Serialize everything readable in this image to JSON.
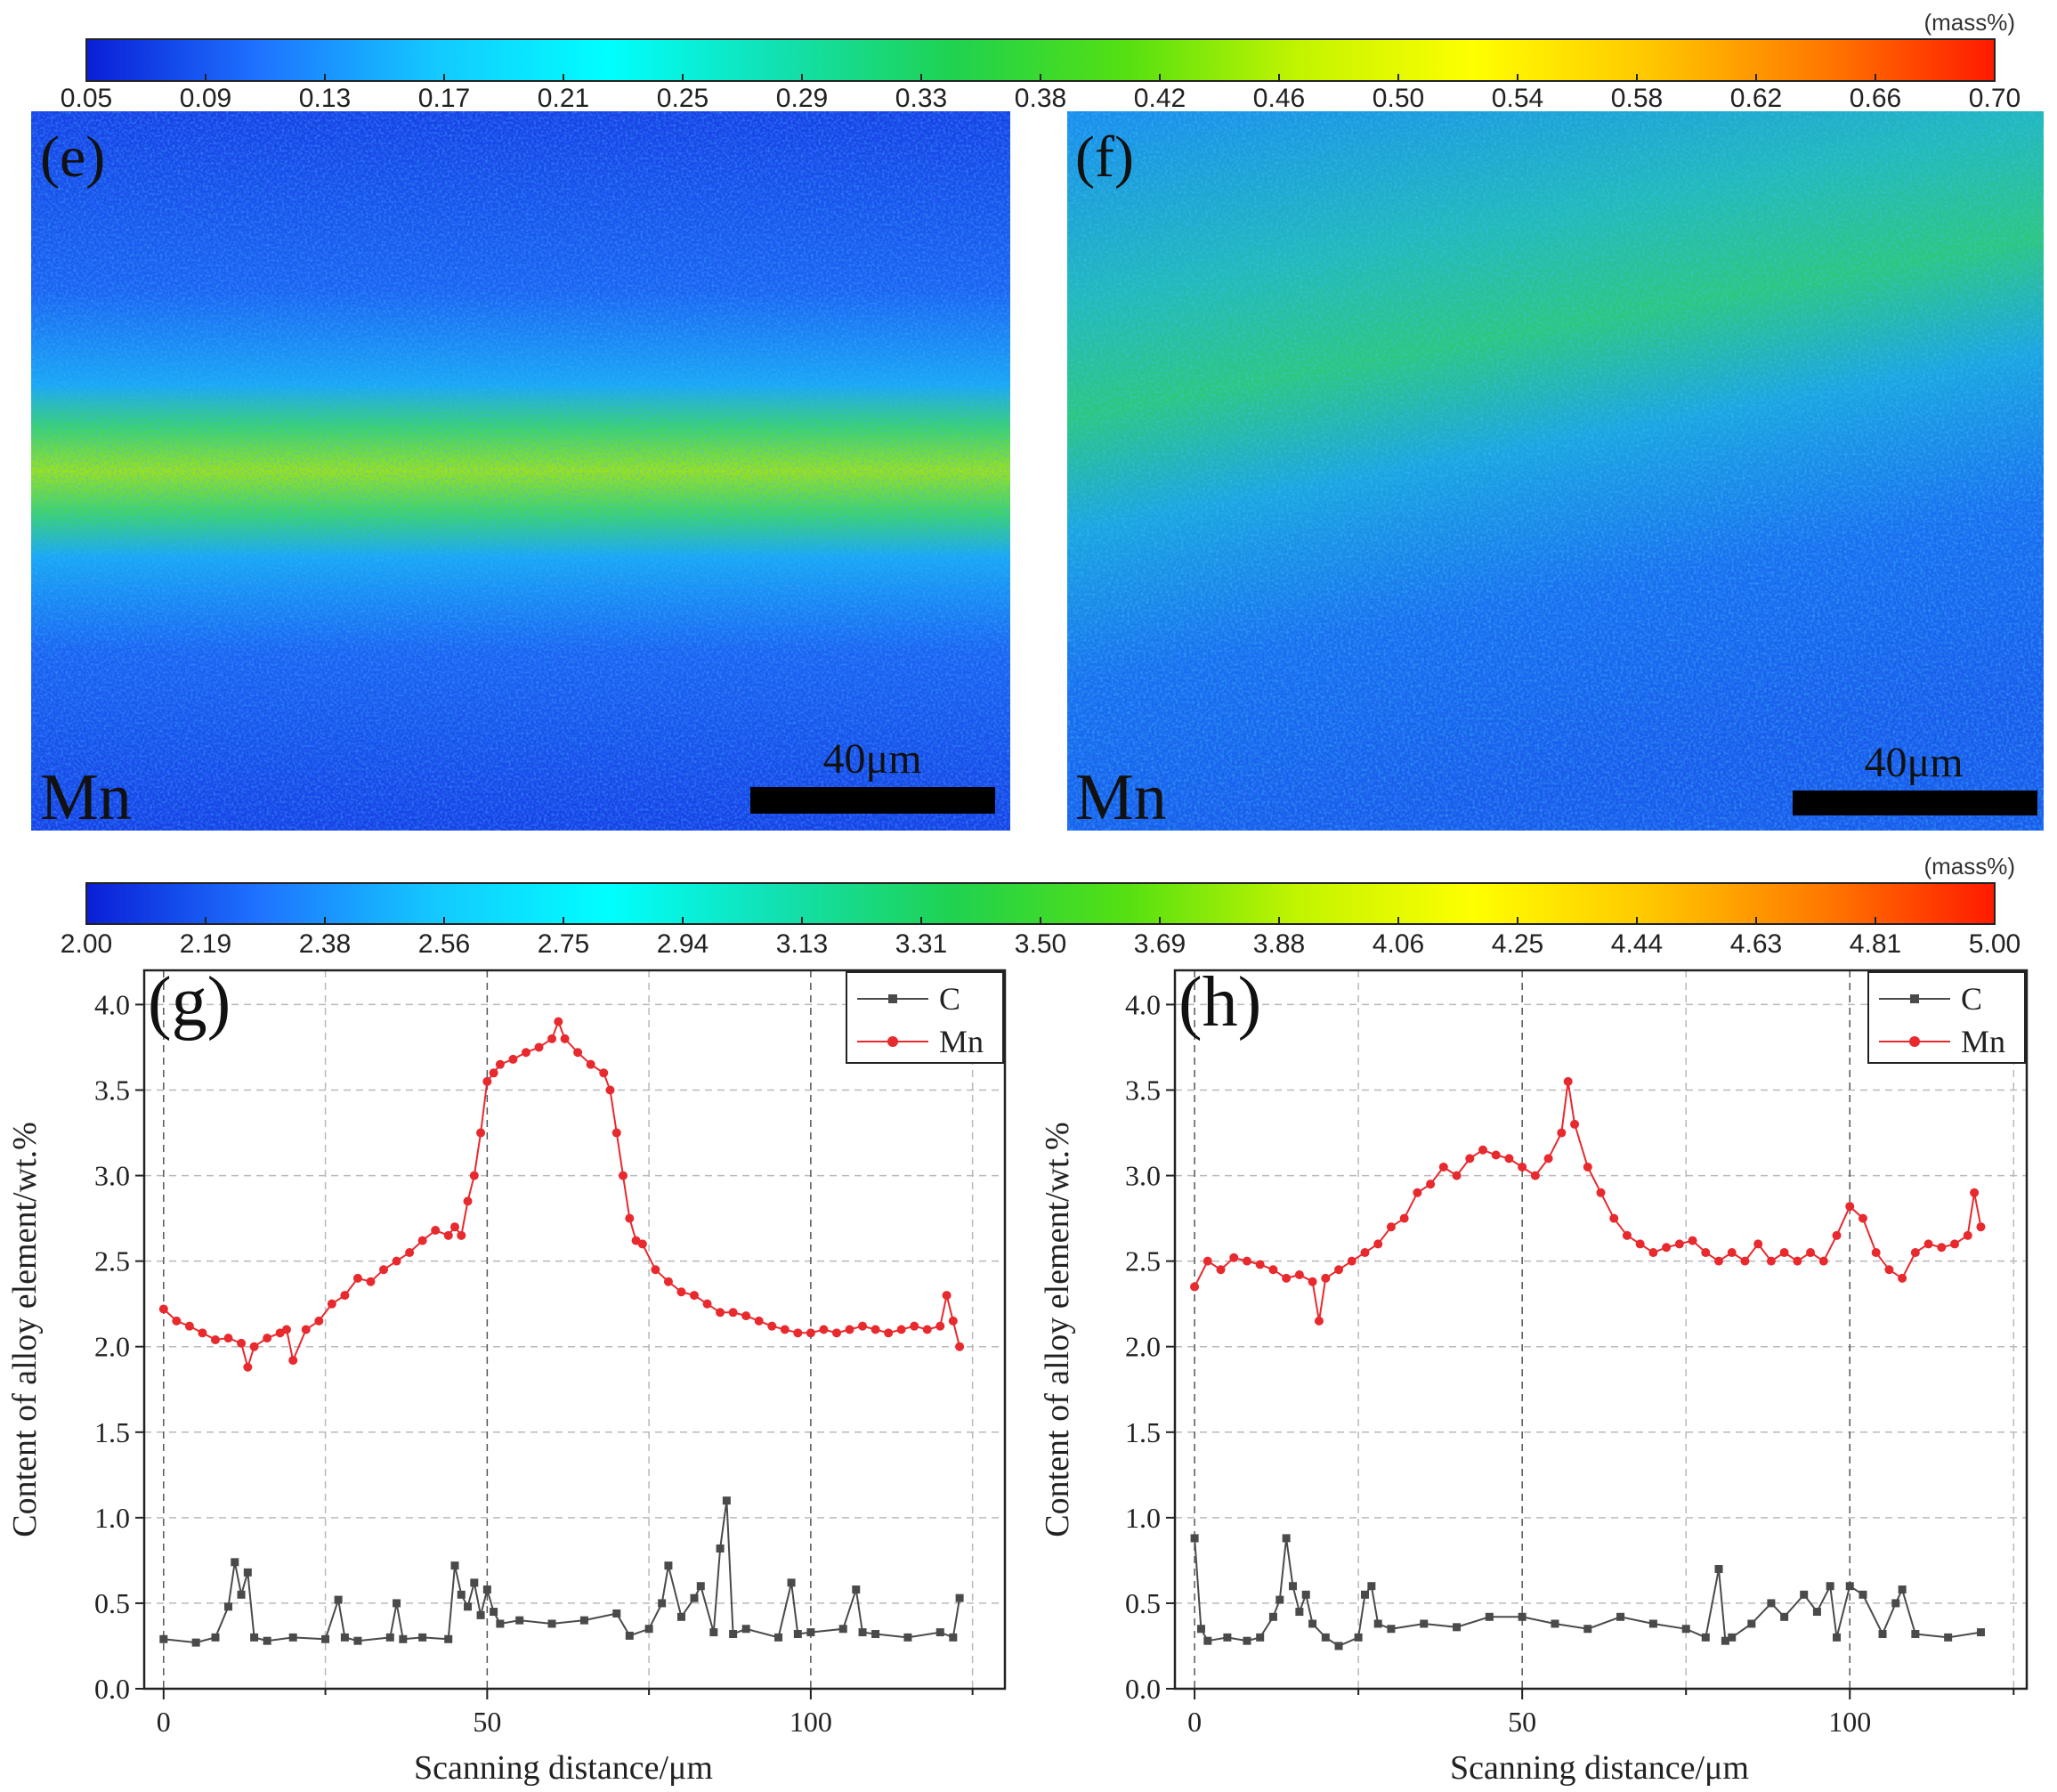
{
  "colorbars": [
    {
      "id": "colorbar-top",
      "unit": "(mass%)",
      "ticks": [
        "0.05",
        "0.09",
        "0.13",
        "0.17",
        "0.21",
        "0.25",
        "0.29",
        "0.33",
        "0.38",
        "0.42",
        "0.46",
        "0.50",
        "0.54",
        "0.58",
        "0.62",
        "0.66",
        "0.70"
      ],
      "colors": [
        "#0a1fd6",
        "#1e73ff",
        "#14c8ff",
        "#00ffff",
        "#12e0b0",
        "#1fd24f",
        "#55e011",
        "#c3f400",
        "#ffff00",
        "#ffc800",
        "#ff7a00",
        "#ff1a00"
      ]
    },
    {
      "id": "colorbar-bottom",
      "unit": "(mass%)",
      "ticks": [
        "2.00",
        "2.19",
        "2.38",
        "2.56",
        "2.75",
        "2.94",
        "3.13",
        "3.31",
        "3.50",
        "3.69",
        "3.88",
        "4.06",
        "4.25",
        "4.44",
        "4.63",
        "4.81",
        "5.00"
      ],
      "colors": [
        "#0a1fd6",
        "#1e73ff",
        "#14c8ff",
        "#00ffff",
        "#12e0b0",
        "#1fd24f",
        "#55e011",
        "#c3f400",
        "#ffff00",
        "#ffc800",
        "#ff7a00",
        "#ff1a00"
      ]
    }
  ],
  "maps": [
    {
      "id": "map-e",
      "panel_label": "(e)",
      "element_label": "Mn",
      "scale_label": "40μm",
      "band": "horizontal-center"
    },
    {
      "id": "map-f",
      "panel_label": "(f)",
      "element_label": "Mn",
      "scale_label": "40μm",
      "band": "diffuse-diagonal"
    }
  ],
  "chart_data": [
    {
      "type": "line",
      "panel_label": "(g)",
      "xlabel": "Scanning distance/μm",
      "ylabel": "Content of alloy element/wt.%",
      "xlim": [
        -3,
        130
      ],
      "ylim": [
        0.0,
        4.2
      ],
      "xticks": [
        "0",
        "50",
        "100"
      ],
      "yticks": [
        "0.0",
        "0.5",
        "1.0",
        "1.5",
        "2.0",
        "2.5",
        "3.0",
        "3.5",
        "4.0"
      ],
      "legend": [
        "C",
        "Mn"
      ],
      "series": [
        {
          "name": "C",
          "color": "#4a4a4a",
          "marker": "square",
          "x": [
            0,
            5,
            8,
            10,
            11,
            12,
            13,
            14,
            16,
            20,
            25,
            27,
            28,
            30,
            35,
            36,
            37,
            40,
            44,
            45,
            46,
            47,
            48,
            49,
            50,
            51,
            52,
            55,
            60,
            65,
            70,
            72,
            75,
            77,
            78,
            80,
            82,
            83,
            85,
            86,
            87,
            88,
            90,
            95,
            97,
            98,
            100,
            105,
            107,
            108,
            110,
            115,
            120,
            122,
            123
          ],
          "y": [
            0.29,
            0.27,
            0.3,
            0.48,
            0.74,
            0.55,
            0.68,
            0.3,
            0.28,
            0.3,
            0.29,
            0.52,
            0.3,
            0.28,
            0.3,
            0.5,
            0.29,
            0.3,
            0.29,
            0.72,
            0.55,
            0.48,
            0.62,
            0.43,
            0.58,
            0.45,
            0.38,
            0.4,
            0.38,
            0.4,
            0.44,
            0.31,
            0.35,
            0.5,
            0.72,
            0.42,
            0.53,
            0.6,
            0.33,
            0.82,
            1.1,
            0.32,
            0.35,
            0.3,
            0.62,
            0.32,
            0.33,
            0.35,
            0.58,
            0.33,
            0.32,
            0.3,
            0.33,
            0.3,
            0.53
          ]
        },
        {
          "name": "Mn",
          "color": "#e8292d",
          "marker": "circle",
          "x": [
            0,
            2,
            4,
            6,
            8,
            10,
            12,
            13,
            14,
            16,
            18,
            19,
            20,
            22,
            24,
            26,
            28,
            30,
            32,
            34,
            36,
            38,
            40,
            42,
            44,
            45,
            46,
            47,
            48,
            49,
            50,
            51,
            52,
            54,
            56,
            58,
            60,
            61,
            62,
            64,
            66,
            68,
            69,
            70,
            71,
            72,
            73,
            74,
            76,
            78,
            80,
            82,
            84,
            86,
            88,
            90,
            92,
            94,
            96,
            98,
            100,
            102,
            104,
            106,
            108,
            110,
            112,
            114,
            116,
            118,
            120,
            121,
            122,
            123
          ],
          "y": [
            2.22,
            2.15,
            2.12,
            2.08,
            2.04,
            2.05,
            2.02,
            1.88,
            2.0,
            2.05,
            2.08,
            2.1,
            1.92,
            2.1,
            2.15,
            2.25,
            2.3,
            2.4,
            2.38,
            2.45,
            2.5,
            2.55,
            2.62,
            2.68,
            2.65,
            2.7,
            2.65,
            2.85,
            3.0,
            3.25,
            3.55,
            3.6,
            3.65,
            3.68,
            3.72,
            3.75,
            3.8,
            3.9,
            3.8,
            3.72,
            3.65,
            3.6,
            3.5,
            3.25,
            3.0,
            2.75,
            2.62,
            2.6,
            2.45,
            2.38,
            2.32,
            2.3,
            2.25,
            2.2,
            2.2,
            2.18,
            2.15,
            2.12,
            2.1,
            2.08,
            2.08,
            2.1,
            2.08,
            2.1,
            2.12,
            2.1,
            2.08,
            2.1,
            2.12,
            2.1,
            2.12,
            2.3,
            2.15,
            2.0
          ]
        }
      ]
    },
    {
      "type": "line",
      "panel_label": "(h)",
      "xlabel": "Scanning distance/μm",
      "ylabel": "Content of alloy element/wt.%",
      "xlim": [
        -3,
        127
      ],
      "ylim": [
        0.0,
        4.2
      ],
      "xticks": [
        "0",
        "50",
        "100"
      ],
      "yticks": [
        "0.0",
        "0.5",
        "1.0",
        "1.5",
        "2.0",
        "2.5",
        "3.0",
        "3.5",
        "4.0"
      ],
      "legend": [
        "C",
        "Mn"
      ],
      "series": [
        {
          "name": "C",
          "color": "#4a4a4a",
          "marker": "square",
          "x": [
            0,
            1,
            2,
            5,
            8,
            10,
            12,
            13,
            14,
            15,
            16,
            17,
            18,
            20,
            22,
            25,
            26,
            27,
            28,
            30,
            35,
            40,
            45,
            50,
            55,
            60,
            65,
            70,
            75,
            78,
            80,
            81,
            82,
            85,
            88,
            90,
            93,
            95,
            97,
            98,
            100,
            102,
            105,
            107,
            108,
            110,
            115,
            120
          ],
          "y": [
            0.88,
            0.35,
            0.28,
            0.3,
            0.28,
            0.3,
            0.42,
            0.52,
            0.88,
            0.6,
            0.45,
            0.55,
            0.38,
            0.3,
            0.25,
            0.3,
            0.55,
            0.6,
            0.38,
            0.35,
            0.38,
            0.36,
            0.42,
            0.42,
            0.38,
            0.35,
            0.42,
            0.38,
            0.35,
            0.3,
            0.7,
            0.28,
            0.3,
            0.38,
            0.5,
            0.42,
            0.55,
            0.45,
            0.6,
            0.3,
            0.6,
            0.55,
            0.32,
            0.5,
            0.58,
            0.32,
            0.3,
            0.33
          ]
        },
        {
          "name": "Mn",
          "color": "#e8292d",
          "marker": "circle",
          "x": [
            0,
            2,
            4,
            6,
            8,
            10,
            12,
            14,
            16,
            18,
            19,
            20,
            22,
            24,
            26,
            28,
            30,
            32,
            34,
            36,
            38,
            40,
            42,
            44,
            46,
            48,
            50,
            52,
            54,
            56,
            57,
            58,
            60,
            62,
            64,
            66,
            68,
            70,
            72,
            74,
            76,
            78,
            80,
            82,
            84,
            86,
            88,
            90,
            92,
            94,
            96,
            98,
            100,
            102,
            104,
            106,
            108,
            110,
            112,
            114,
            116,
            118,
            119,
            120
          ],
          "y": [
            2.35,
            2.5,
            2.45,
            2.52,
            2.5,
            2.48,
            2.45,
            2.4,
            2.42,
            2.38,
            2.15,
            2.4,
            2.45,
            2.5,
            2.55,
            2.6,
            2.7,
            2.75,
            2.9,
            2.95,
            3.05,
            3.0,
            3.1,
            3.15,
            3.12,
            3.1,
            3.05,
            3.0,
            3.1,
            3.25,
            3.55,
            3.3,
            3.05,
            2.9,
            2.75,
            2.65,
            2.6,
            2.55,
            2.58,
            2.6,
            2.62,
            2.55,
            2.5,
            2.55,
            2.5,
            2.6,
            2.5,
            2.55,
            2.5,
            2.55,
            2.5,
            2.65,
            2.82,
            2.75,
            2.55,
            2.45,
            2.4,
            2.55,
            2.6,
            2.58,
            2.6,
            2.65,
            2.9,
            2.7
          ]
        }
      ]
    }
  ]
}
